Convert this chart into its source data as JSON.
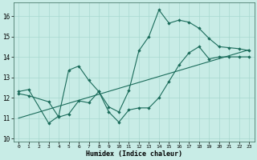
{
  "xlabel": "Humidex (Indice chaleur)",
  "bg_color": "#c8ece6",
  "line_color": "#1a6b5a",
  "grid_color": "#a8d8d0",
  "xlim": [
    -0.5,
    23.5
  ],
  "ylim": [
    9.85,
    16.65
  ],
  "yticks": [
    10,
    11,
    12,
    13,
    14,
    15,
    16
  ],
  "xticks": [
    0,
    1,
    2,
    3,
    4,
    5,
    6,
    7,
    8,
    9,
    10,
    11,
    12,
    13,
    14,
    15,
    16,
    17,
    18,
    19,
    20,
    21,
    22,
    23
  ],
  "line1_x": [
    0,
    1,
    3,
    4,
    5,
    6,
    7,
    8,
    9,
    10,
    11,
    12,
    13,
    14,
    15,
    16,
    17,
    18,
    19,
    20,
    21,
    22,
    23
  ],
  "line1_y": [
    12.3,
    12.4,
    10.75,
    11.1,
    13.35,
    13.55,
    12.85,
    12.3,
    11.55,
    11.3,
    12.35,
    14.3,
    15.0,
    16.3,
    15.65,
    15.8,
    15.7,
    15.4,
    14.9,
    14.5,
    14.45,
    14.4,
    14.3
  ],
  "line2_x": [
    0,
    1,
    3,
    4,
    5,
    6,
    7,
    8,
    9,
    10,
    11,
    12,
    13,
    14,
    15,
    16,
    17,
    18,
    19,
    20,
    21,
    22,
    23
  ],
  "line2_y": [
    12.2,
    12.1,
    11.8,
    11.05,
    11.2,
    11.85,
    11.75,
    12.3,
    11.3,
    10.8,
    11.4,
    11.5,
    11.5,
    12.0,
    12.8,
    13.6,
    14.2,
    14.5,
    13.9,
    14.0,
    14.0,
    14.0,
    14.0
  ],
  "line3_x": [
    0,
    23
  ],
  "line3_y": [
    11.0,
    14.35
  ]
}
